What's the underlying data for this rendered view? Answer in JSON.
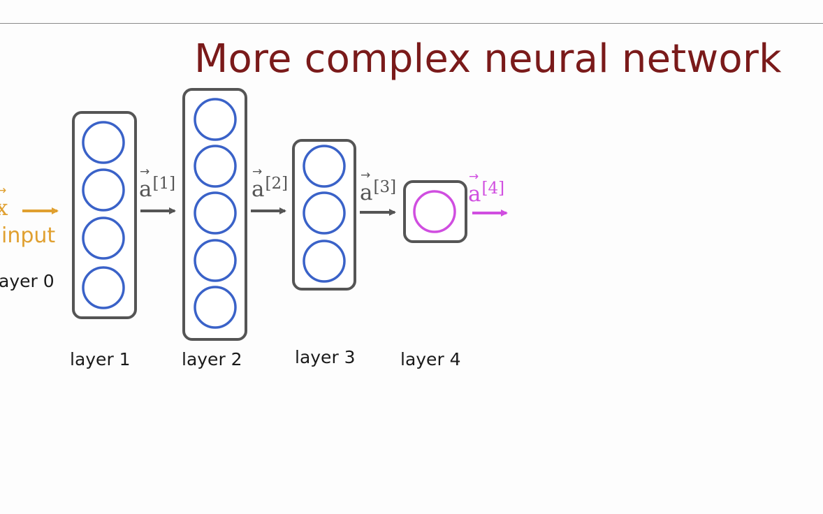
{
  "title": "More complex neural network",
  "colors": {
    "title": "#7a1a1a",
    "input": "#e0a030",
    "hidden_neuron": "#3a62c8",
    "output_neuron": "#d04ee0",
    "arrow": "#555555",
    "box_border": "#555555"
  },
  "input": {
    "vector": "x",
    "label": "input",
    "layer_label": "ayer 0"
  },
  "layers": [
    {
      "label": "layer 1",
      "neurons": 4
    },
    {
      "label": "layer 2",
      "neurons": 5
    },
    {
      "label": "layer 3",
      "neurons": 3
    },
    {
      "label": "layer 4",
      "neurons": 1
    }
  ],
  "activations": [
    {
      "symbol": "a",
      "sup": "[1]"
    },
    {
      "symbol": "a",
      "sup": "[2]"
    },
    {
      "symbol": "a",
      "sup": "[3]"
    },
    {
      "symbol": "a",
      "sup": "[4]"
    }
  ]
}
